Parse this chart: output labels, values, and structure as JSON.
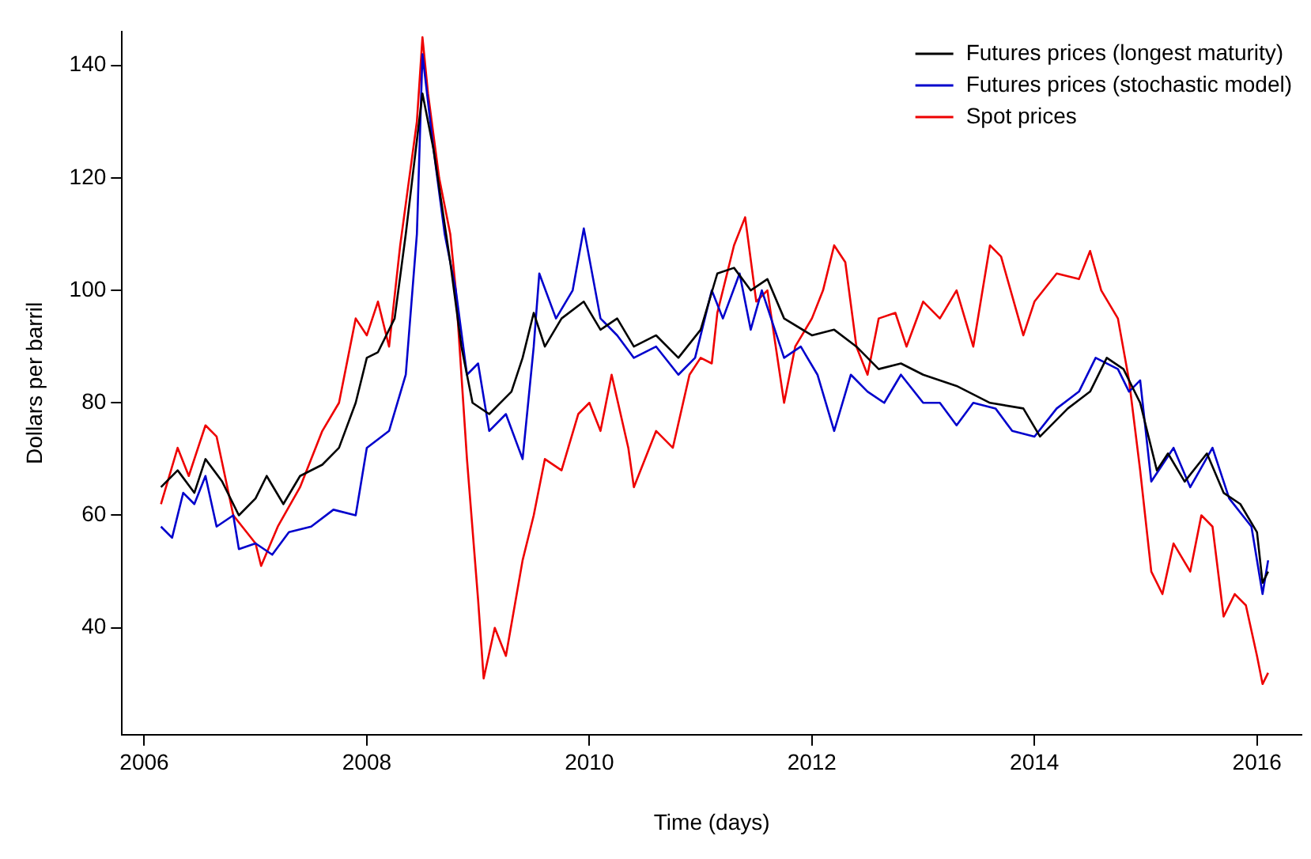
{
  "chart_data": {
    "type": "line",
    "xlabel": "Time (days)",
    "ylabel": "Dollars per barril",
    "xlim": [
      2005.8,
      2016.4
    ],
    "xticks": [
      2006,
      2008,
      2010,
      2012,
      2014,
      2016
    ],
    "ylim": [
      21,
      146
    ],
    "yticks": [
      40,
      60,
      80,
      100,
      120,
      140
    ],
    "grid": false,
    "legend": "top right",
    "marker": "none",
    "line_style": "solid",
    "series": [
      {
        "name": "Futures prices (longest maturity)",
        "color": "#000000",
        "x": [
          2006.15,
          2006.3,
          2006.45,
          2006.55,
          2006.7,
          2006.85,
          2007.0,
          2007.1,
          2007.25,
          2007.4,
          2007.6,
          2007.75,
          2007.9,
          2008.0,
          2008.1,
          2008.25,
          2008.35,
          2008.5,
          2008.6,
          2008.75,
          2008.85,
          2008.95,
          2009.1,
          2009.3,
          2009.4,
          2009.5,
          2009.6,
          2009.75,
          2009.95,
          2010.1,
          2010.25,
          2010.4,
          2010.6,
          2010.8,
          2011.0,
          2011.15,
          2011.3,
          2011.45,
          2011.6,
          2011.75,
          2012.0,
          2012.2,
          2012.4,
          2012.6,
          2012.8,
          2013.0,
          2013.3,
          2013.6,
          2013.9,
          2014.05,
          2014.3,
          2014.5,
          2014.65,
          2014.8,
          2014.95,
          2015.1,
          2015.2,
          2015.35,
          2015.55,
          2015.7,
          2015.85,
          2016.0,
          2016.05,
          2016.1
        ],
        "values": [
          65,
          68,
          64,
          70,
          66,
          60,
          63,
          67,
          62,
          67,
          69,
          72,
          80,
          88,
          89,
          95,
          110,
          135,
          125,
          105,
          90,
          80,
          78,
          82,
          88,
          96,
          90,
          95,
          98,
          93,
          95,
          90,
          92,
          88,
          93,
          103,
          104,
          100,
          102,
          95,
          92,
          93,
          90,
          86,
          87,
          85,
          83,
          80,
          79,
          74,
          79,
          82,
          88,
          86,
          80,
          68,
          71,
          66,
          71,
          64,
          62,
          57,
          48,
          50
        ]
      },
      {
        "name": "Futures prices (stochastic model)",
        "color": "#0000cc",
        "x": [
          2006.15,
          2006.25,
          2006.35,
          2006.45,
          2006.55,
          2006.65,
          2006.8,
          2006.85,
          2007.0,
          2007.15,
          2007.3,
          2007.5,
          2007.7,
          2007.9,
          2008.0,
          2008.2,
          2008.35,
          2008.45,
          2008.5,
          2008.6,
          2008.7,
          2008.8,
          2008.9,
          2009.0,
          2009.1,
          2009.25,
          2009.4,
          2009.5,
          2009.55,
          2009.7,
          2009.85,
          2009.95,
          2010.1,
          2010.25,
          2010.4,
          2010.6,
          2010.8,
          2010.95,
          2011.1,
          2011.2,
          2011.35,
          2011.45,
          2011.55,
          2011.75,
          2011.9,
          2012.05,
          2012.2,
          2012.35,
          2012.5,
          2012.65,
          2012.8,
          2013.0,
          2013.15,
          2013.3,
          2013.45,
          2013.65,
          2013.8,
          2014.0,
          2014.2,
          2014.4,
          2014.55,
          2014.75,
          2014.85,
          2014.95,
          2015.05,
          2015.25,
          2015.4,
          2015.6,
          2015.75,
          2015.95,
          2016.05,
          2016.1
        ],
        "values": [
          58,
          56,
          64,
          62,
          67,
          58,
          60,
          54,
          55,
          53,
          57,
          58,
          61,
          60,
          72,
          75,
          85,
          110,
          142,
          125,
          110,
          100,
          85,
          87,
          75,
          78,
          70,
          90,
          103,
          95,
          100,
          111,
          95,
          92,
          88,
          90,
          85,
          88,
          100,
          95,
          103,
          93,
          100,
          88,
          90,
          85,
          75,
          85,
          82,
          80,
          85,
          80,
          80,
          76,
          80,
          79,
          75,
          74,
          79,
          82,
          88,
          86,
          82,
          84,
          66,
          72,
          65,
          72,
          63,
          58,
          46,
          52
        ]
      },
      {
        "name": "Spot prices",
        "color": "#ee0000",
        "x": [
          2006.15,
          2006.3,
          2006.4,
          2006.55,
          2006.65,
          2006.8,
          2007.0,
          2007.05,
          2007.2,
          2007.4,
          2007.6,
          2007.75,
          2007.9,
          2008.0,
          2008.1,
          2008.2,
          2008.3,
          2008.45,
          2008.5,
          2008.55,
          2008.65,
          2008.75,
          2008.8,
          2008.9,
          2009.0,
          2009.05,
          2009.15,
          2009.25,
          2009.4,
          2009.5,
          2009.6,
          2009.75,
          2009.9,
          2010.0,
          2010.1,
          2010.2,
          2010.35,
          2010.4,
          2010.6,
          2010.75,
          2010.9,
          2011.0,
          2011.1,
          2011.15,
          2011.3,
          2011.4,
          2011.5,
          2011.6,
          2011.75,
          2011.85,
          2012.0,
          2012.1,
          2012.2,
          2012.3,
          2012.4,
          2012.5,
          2012.6,
          2012.75,
          2012.85,
          2013.0,
          2013.15,
          2013.3,
          2013.45,
          2013.6,
          2013.7,
          2013.9,
          2014.0,
          2014.2,
          2014.4,
          2014.5,
          2014.6,
          2014.75,
          2014.85,
          2014.95,
          2015.05,
          2015.15,
          2015.25,
          2015.4,
          2015.5,
          2015.6,
          2015.7,
          2015.8,
          2015.9,
          2016.0,
          2016.05,
          2016.1
        ],
        "values": [
          62,
          72,
          67,
          76,
          74,
          60,
          55,
          51,
          58,
          65,
          75,
          80,
          95,
          92,
          98,
          90,
          108,
          130,
          145,
          135,
          120,
          110,
          100,
          70,
          45,
          31,
          40,
          35,
          52,
          60,
          70,
          68,
          78,
          80,
          75,
          85,
          72,
          65,
          75,
          72,
          85,
          88,
          87,
          96,
          108,
          113,
          98,
          100,
          80,
          90,
          95,
          100,
          108,
          105,
          90,
          85,
          95,
          96,
          90,
          98,
          95,
          100,
          90,
          108,
          106,
          92,
          98,
          103,
          102,
          107,
          100,
          95,
          84,
          68,
          50,
          46,
          55,
          50,
          60,
          58,
          42,
          46,
          44,
          35,
          30,
          32
        ]
      }
    ]
  }
}
